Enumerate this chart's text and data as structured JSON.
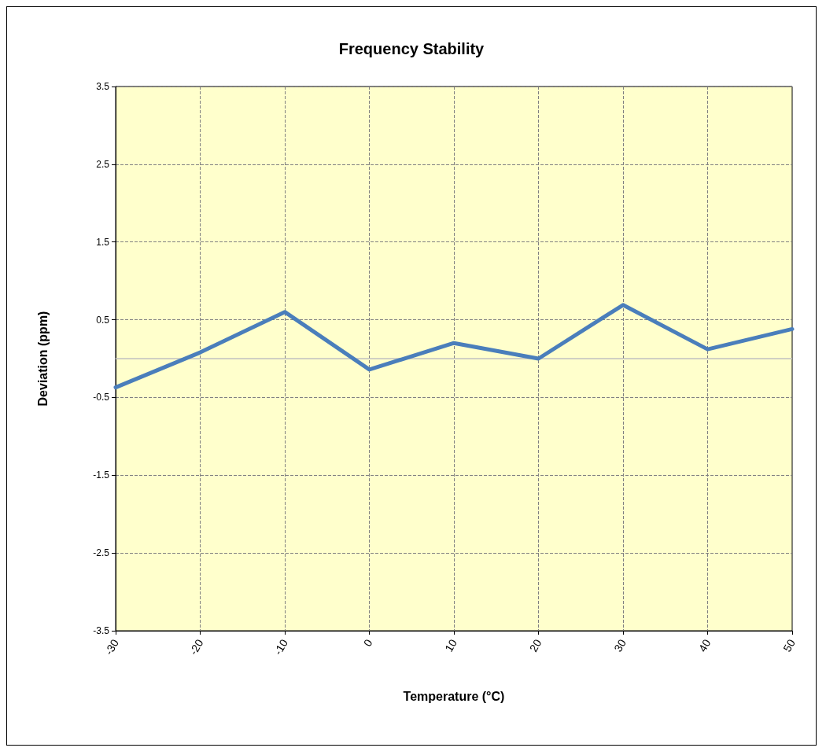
{
  "chart_data": {
    "type": "line",
    "title": "Frequency Stability",
    "xlabel": "Temperature (°C)",
    "ylabel": "Deviation (ppm)",
    "x": [
      -30,
      -20,
      -10,
      0,
      10,
      20,
      30,
      40,
      50
    ],
    "series": [
      {
        "color": "#4a7ebb",
        "values": [
          -0.37,
          0.08,
          0.6,
          -0.14,
          0.2,
          0.0,
          0.69,
          0.12,
          0.38
        ]
      }
    ],
    "xlim": [
      -30,
      50
    ],
    "xticks": [
      -30,
      -20,
      -10,
      0,
      10,
      20,
      30,
      40,
      50
    ],
    "ylim": [
      -3.5,
      3.5
    ],
    "yticks": [
      -3.5,
      -2.5,
      -1.5,
      -0.5,
      0.5,
      1.5,
      2.5,
      3.5
    ],
    "ref_lines": [
      {
        "axis": "y",
        "value": 0,
        "color": "#c0c0c0"
      }
    ],
    "grid": true,
    "marker": "none",
    "line_style": "solid"
  }
}
